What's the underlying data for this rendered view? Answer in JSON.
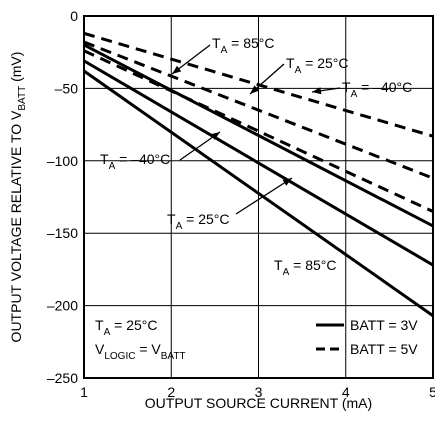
{
  "chart_data": {
    "type": "line",
    "title": "",
    "xlabel": "OUTPUT SOURCE CURRENT (mA)",
    "ylabel_parts": [
      "OUTPUT VOLTAGE RELATIVE TO V",
      "BATT",
      " (mV)"
    ],
    "xlim": [
      1,
      5
    ],
    "ylim": [
      -250,
      0
    ],
    "xticks": [
      1,
      2,
      3,
      4,
      5
    ],
    "yticks": [
      0,
      -50,
      -100,
      -150,
      -200,
      -250
    ],
    "grid": true,
    "series": [
      {
        "name": "BATT = 3V, TA = -40°C",
        "style": "solid",
        "x": [
          1,
          5
        ],
        "y": [
          -20,
          -145
        ]
      },
      {
        "name": "BATT = 3V, TA = 25°C",
        "style": "solid",
        "x": [
          1,
          5
        ],
        "y": [
          -31,
          -172
        ]
      },
      {
        "name": "BATT = 3V, TA = 85°C",
        "style": "solid",
        "x": [
          1,
          5
        ],
        "y": [
          -38,
          -207
        ]
      },
      {
        "name": "BATT = 5V, TA = -40°C",
        "style": "dashed",
        "x": [
          1,
          5
        ],
        "y": [
          -12,
          -83
        ]
      },
      {
        "name": "BATT = 5V, TA = 25°C",
        "style": "dashed",
        "x": [
          1,
          5
        ],
        "y": [
          -18,
          -112
        ]
      },
      {
        "name": "BATT = 5V, TA = 85°C",
        "style": "dashed",
        "x": [
          1,
          5
        ],
        "y": [
          -24,
          -135
        ]
      }
    ],
    "annotations": [
      {
        "id": "t85-top",
        "text": "T",
        "sub": "A",
        "rest": " = 85°C"
      },
      {
        "id": "t25-top",
        "text": "T",
        "sub": "A",
        "rest": " = 25°C"
      },
      {
        "id": "tm40-right",
        "text": "T",
        "sub": "A",
        "rest": " = –40°C"
      },
      {
        "id": "tm40-left",
        "text": "T",
        "sub": "A",
        "rest": " = –40°C"
      },
      {
        "id": "t25-mid",
        "text": "T",
        "sub": "A",
        "rest": " = 25°C"
      },
      {
        "id": "t85-bottom",
        "text": "T",
        "sub": "A",
        "rest": " = 85°C"
      }
    ],
    "conditions": {
      "line1": {
        "text": "T",
        "sub": "A",
        "rest": " = 25°C"
      },
      "line2": {
        "text": "V",
        "sub": "LOGIC",
        "mid": " = V",
        "sub2": "BATT"
      }
    },
    "legend": {
      "placement": "bottom-right",
      "entries": [
        {
          "label": "BATT = 3V",
          "style": "solid"
        },
        {
          "label": "BATT = 5V",
          "style": "dashed"
        }
      ]
    }
  }
}
